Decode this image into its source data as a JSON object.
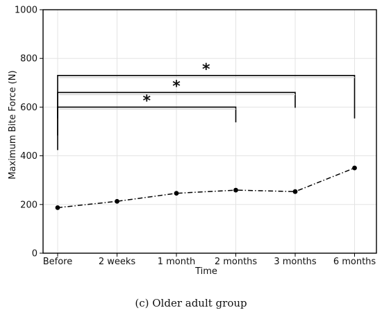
{
  "chart_data": {
    "type": "line",
    "title": "",
    "xlabel": "Time",
    "ylabel": "Maximum Bite Force (N)",
    "categories": [
      "Before",
      "2 weeks",
      "1 month",
      "2 months",
      "3 months",
      "6 months"
    ],
    "series": [
      {
        "values": [
          187,
          213,
          246,
          259,
          253,
          350
        ]
      }
    ],
    "ylim": [
      0,
      1000
    ],
    "yticks": [
      "0",
      "200",
      "400",
      "600",
      "800",
      "1000"
    ],
    "grid": true,
    "line_style": "dash-dot",
    "line_color": "#000000",
    "significance_brackets": [
      {
        "from": "Before",
        "to": "6 months",
        "level": 730,
        "label": "*"
      },
      {
        "from": "Before",
        "to": "3 months",
        "level": 660,
        "label": "*"
      },
      {
        "from": "Before",
        "to": "2 months",
        "level": 600,
        "label": "*"
      }
    ]
  },
  "caption": "(c) Older adult group"
}
